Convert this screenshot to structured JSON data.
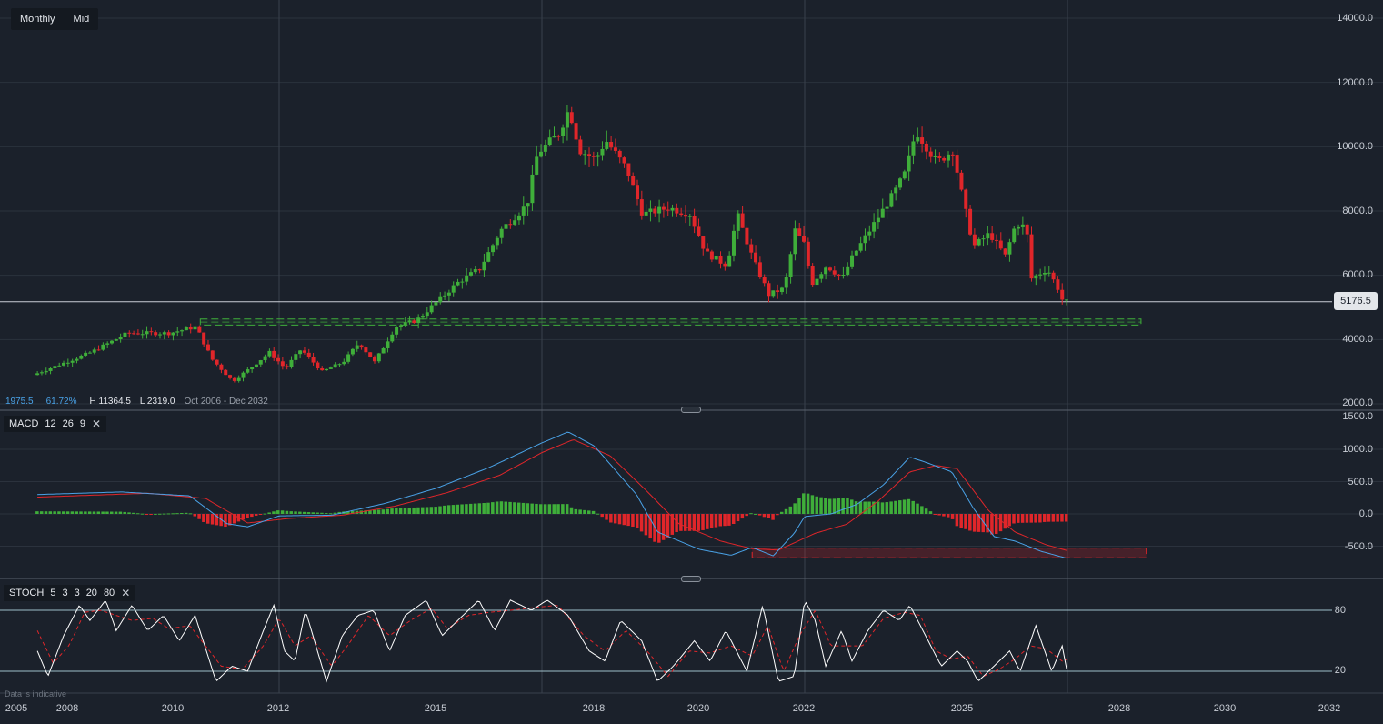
{
  "toolbar": {
    "interval": "Monthly",
    "price_type": "Mid"
  },
  "colors": {
    "background": "#1b212b",
    "up": "#3fae3a",
    "down": "#e0262a",
    "macd_line": "#4aa3e8",
    "signal_line": "#e0262a",
    "stoch_k": "#ffffff",
    "stoch_d": "#e0262a",
    "hist_pos": "#3fae3a",
    "hist_neg": "#e0262a"
  },
  "price_axis": {
    "labels": [
      "14000.0",
      "12000.0",
      "10000.0",
      "8000.0",
      "6000.0",
      "4000.0",
      "2000.0"
    ]
  },
  "last_price": "5176.5",
  "info": {
    "fib_level": "1975.5",
    "fib_pct": "61.72%",
    "high": "H 11364.5",
    "low": "L 2319.0",
    "range": "Oct 2006 - Dec 2032"
  },
  "macd": {
    "label": "MACD",
    "params": [
      "12",
      "26",
      "9"
    ],
    "axis_labels": [
      "1500.0",
      "1000.0",
      "500.0",
      "0.0",
      "-500.0"
    ]
  },
  "stoch": {
    "label": "STOCH",
    "params": [
      "5",
      "3",
      "3",
      "20",
      "80"
    ],
    "axis_labels": [
      "80",
      "20"
    ]
  },
  "x_axis": {
    "labels": [
      "2005",
      "2008",
      "2010",
      "2012",
      "2015",
      "2018",
      "2020",
      "2022",
      "2025",
      "2028",
      "2030",
      "2032"
    ]
  },
  "disclaimer": "Data is indicative",
  "chart_data": [
    {
      "type": "candlestick",
      "ylim": [
        2000,
        14000
      ],
      "x_range": [
        2005.4,
        2032.5
      ],
      "anchors": [
        [
          2005.4,
          2900
        ],
        [
          2006.5,
          3600
        ],
        [
          2007.2,
          4200
        ],
        [
          2008.0,
          4200
        ],
        [
          2008.5,
          4400
        ],
        [
          2008.8,
          3400
        ],
        [
          2009.2,
          2700
        ],
        [
          2009.6,
          3200
        ],
        [
          2009.9,
          3600
        ],
        [
          2010.2,
          3100
        ],
        [
          2010.5,
          3700
        ],
        [
          2010.9,
          3000
        ],
        [
          2011.3,
          3300
        ],
        [
          2011.6,
          3900
        ],
        [
          2011.9,
          3300
        ],
        [
          2012.3,
          4400
        ],
        [
          2012.7,
          4600
        ],
        [
          2013.1,
          5200
        ],
        [
          2013.5,
          5800
        ],
        [
          2013.9,
          6200
        ],
        [
          2014.3,
          7400
        ],
        [
          2014.8,
          8200
        ],
        [
          2015.0,
          9800
        ],
        [
          2015.4,
          10400
        ],
        [
          2015.6,
          11200
        ],
        [
          2015.8,
          9900
        ],
        [
          2016.1,
          9600
        ],
        [
          2016.3,
          10200
        ],
        [
          2016.7,
          9300
        ],
        [
          2017.0,
          7900
        ],
        [
          2017.5,
          8100
        ],
        [
          2017.9,
          7900
        ],
        [
          2018.2,
          6700
        ],
        [
          2018.6,
          6300
        ],
        [
          2018.8,
          7900
        ],
        [
          2019.1,
          6500
        ],
        [
          2019.4,
          5400
        ],
        [
          2019.7,
          5600
        ],
        [
          2019.9,
          7400
        ],
        [
          2020.1,
          6900
        ],
        [
          2020.2,
          5700
        ],
        [
          2020.5,
          6300
        ],
        [
          2020.8,
          5900
        ],
        [
          2021.0,
          6600
        ],
        [
          2021.4,
          7600
        ],
        [
          2021.8,
          8600
        ],
        [
          2022.0,
          9200
        ],
        [
          2022.2,
          10500
        ],
        [
          2022.6,
          9500
        ],
        [
          2022.9,
          9900
        ],
        [
          2023.1,
          8300
        ],
        [
          2023.3,
          6900
        ],
        [
          2023.6,
          7300
        ],
        [
          2023.9,
          6600
        ],
        [
          2024.1,
          7600
        ],
        [
          2024.3,
          7500
        ],
        [
          2024.4,
          5900
        ],
        [
          2024.7,
          6200
        ],
        [
          2024.9,
          5600
        ],
        [
          2025.0,
          5176.5
        ]
      ],
      "last": 5176.5,
      "support_band": [
        4450,
        4640
      ],
      "support_x": [
        2008.5,
        2026.4
      ]
    },
    {
      "type": "macd",
      "ylim": [
        -900,
        1500
      ],
      "macd_anchors": [
        [
          2005.4,
          300
        ],
        [
          2007.0,
          340
        ],
        [
          2008.3,
          280
        ],
        [
          2009.0,
          -150
        ],
        [
          2009.4,
          -200
        ],
        [
          2010.0,
          -30
        ],
        [
          2011.0,
          -20
        ],
        [
          2012.0,
          160
        ],
        [
          2013.0,
          400
        ],
        [
          2014.0,
          720
        ],
        [
          2015.0,
          1100
        ],
        [
          2015.5,
          1270
        ],
        [
          2016.0,
          1050
        ],
        [
          2016.8,
          300
        ],
        [
          2017.2,
          -280
        ],
        [
          2018.0,
          -550
        ],
        [
          2018.6,
          -640
        ],
        [
          2019.0,
          -520
        ],
        [
          2019.4,
          -650
        ],
        [
          2019.8,
          -300
        ],
        [
          2020.0,
          -40
        ],
        [
          2020.5,
          0
        ],
        [
          2021.0,
          150
        ],
        [
          2021.5,
          450
        ],
        [
          2022.0,
          880
        ],
        [
          2022.3,
          800
        ],
        [
          2022.8,
          650
        ],
        [
          2023.2,
          100
        ],
        [
          2023.6,
          -350
        ],
        [
          2024.0,
          -420
        ],
        [
          2024.5,
          -580
        ],
        [
          2025.0,
          -690
        ]
      ],
      "signal_anchors": [
        [
          2005.4,
          260
        ],
        [
          2007.5,
          320
        ],
        [
          2008.6,
          240
        ],
        [
          2009.4,
          -140
        ],
        [
          2010.2,
          -70
        ],
        [
          2011.2,
          -20
        ],
        [
          2012.2,
          120
        ],
        [
          2013.2,
          330
        ],
        [
          2014.2,
          600
        ],
        [
          2015.0,
          950
        ],
        [
          2015.6,
          1150
        ],
        [
          2016.3,
          900
        ],
        [
          2017.0,
          350
        ],
        [
          2017.6,
          -150
        ],
        [
          2018.4,
          -420
        ],
        [
          2019.0,
          -540
        ],
        [
          2019.5,
          -560
        ],
        [
          2020.2,
          -300
        ],
        [
          2020.8,
          -160
        ],
        [
          2021.4,
          200
        ],
        [
          2022.0,
          650
        ],
        [
          2022.5,
          750
        ],
        [
          2022.9,
          700
        ],
        [
          2023.5,
          50
        ],
        [
          2024.0,
          -280
        ],
        [
          2024.6,
          -480
        ],
        [
          2025.0,
          -570
        ]
      ],
      "support_band": [
        -680,
        -530
      ],
      "support_x": [
        2019.0,
        2026.5
      ]
    },
    {
      "type": "stochastic",
      "ylim": [
        0,
        100
      ],
      "levels": [
        80,
        20
      ],
      "k_anchors": [
        [
          2005.4,
          40
        ],
        [
          2005.6,
          15
        ],
        [
          2005.9,
          55
        ],
        [
          2006.2,
          85
        ],
        [
          2006.4,
          70
        ],
        [
          2006.7,
          90
        ],
        [
          2006.9,
          60
        ],
        [
          2007.2,
          85
        ],
        [
          2007.5,
          60
        ],
        [
          2007.8,
          75
        ],
        [
          2008.1,
          50
        ],
        [
          2008.4,
          75
        ],
        [
          2008.8,
          10
        ],
        [
          2009.1,
          25
        ],
        [
          2009.4,
          20
        ],
        [
          2009.7,
          60
        ],
        [
          2009.9,
          85
        ],
        [
          2010.1,
          40
        ],
        [
          2010.3,
          30
        ],
        [
          2010.5,
          80
        ],
        [
          2010.9,
          10
        ],
        [
          2011.2,
          55
        ],
        [
          2011.5,
          75
        ],
        [
          2011.8,
          80
        ],
        [
          2012.1,
          40
        ],
        [
          2012.4,
          75
        ],
        [
          2012.8,
          90
        ],
        [
          2013.1,
          55
        ],
        [
          2013.4,
          70
        ],
        [
          2013.8,
          90
        ],
        [
          2014.1,
          60
        ],
        [
          2014.4,
          90
        ],
        [
          2014.8,
          80
        ],
        [
          2015.1,
          90
        ],
        [
          2015.5,
          75
        ],
        [
          2015.9,
          40
        ],
        [
          2016.2,
          30
        ],
        [
          2016.5,
          70
        ],
        [
          2016.9,
          50
        ],
        [
          2017.2,
          10
        ],
        [
          2017.5,
          25
        ],
        [
          2017.9,
          50
        ],
        [
          2018.2,
          30
        ],
        [
          2018.5,
          60
        ],
        [
          2018.9,
          20
        ],
        [
          2019.2,
          85
        ],
        [
          2019.5,
          10
        ],
        [
          2019.8,
          15
        ],
        [
          2020.0,
          90
        ],
        [
          2020.2,
          70
        ],
        [
          2020.4,
          25
        ],
        [
          2020.7,
          60
        ],
        [
          2020.9,
          30
        ],
        [
          2021.2,
          60
        ],
        [
          2021.5,
          80
        ],
        [
          2021.8,
          70
        ],
        [
          2022.0,
          85
        ],
        [
          2022.3,
          55
        ],
        [
          2022.6,
          25
        ],
        [
          2022.9,
          40
        ],
        [
          2023.1,
          30
        ],
        [
          2023.3,
          10
        ],
        [
          2023.6,
          25
        ],
        [
          2023.9,
          40
        ],
        [
          2024.1,
          20
        ],
        [
          2024.4,
          65
        ],
        [
          2024.7,
          20
        ],
        [
          2024.9,
          45
        ],
        [
          2025.0,
          18
        ]
      ],
      "d_anchors": [
        [
          2005.4,
          60
        ],
        [
          2005.7,
          28
        ],
        [
          2006.0,
          45
        ],
        [
          2006.3,
          78
        ],
        [
          2006.6,
          80
        ],
        [
          2006.9,
          75
        ],
        [
          2007.2,
          70
        ],
        [
          2007.6,
          72
        ],
        [
          2007.9,
          62
        ],
        [
          2008.3,
          65
        ],
        [
          2008.9,
          25
        ],
        [
          2009.3,
          22
        ],
        [
          2009.7,
          45
        ],
        [
          2010.0,
          72
        ],
        [
          2010.3,
          45
        ],
        [
          2010.6,
          55
        ],
        [
          2011.0,
          25
        ],
        [
          2011.3,
          45
        ],
        [
          2011.7,
          75
        ],
        [
          2012.1,
          55
        ],
        [
          2012.5,
          70
        ],
        [
          2012.9,
          82
        ],
        [
          2013.2,
          62
        ],
        [
          2013.6,
          75
        ],
        [
          2014.0,
          78
        ],
        [
          2014.4,
          80
        ],
        [
          2014.9,
          83
        ],
        [
          2015.3,
          85
        ],
        [
          2015.8,
          55
        ],
        [
          2016.2,
          40
        ],
        [
          2016.6,
          60
        ],
        [
          2017.0,
          40
        ],
        [
          2017.4,
          15
        ],
        [
          2017.8,
          40
        ],
        [
          2018.2,
          38
        ],
        [
          2018.6,
          45
        ],
        [
          2019.0,
          35
        ],
        [
          2019.3,
          65
        ],
        [
          2019.6,
          20
        ],
        [
          2019.9,
          55
        ],
        [
          2020.2,
          80
        ],
        [
          2020.5,
          45
        ],
        [
          2020.8,
          45
        ],
        [
          2021.1,
          45
        ],
        [
          2021.5,
          72
        ],
        [
          2021.9,
          78
        ],
        [
          2022.2,
          75
        ],
        [
          2022.5,
          40
        ],
        [
          2022.8,
          32
        ],
        [
          2023.1,
          35
        ],
        [
          2023.4,
          15
        ],
        [
          2023.7,
          22
        ],
        [
          2024.0,
          32
        ],
        [
          2024.3,
          45
        ],
        [
          2024.6,
          42
        ],
        [
          2024.9,
          30
        ],
        [
          2025.0,
          32
        ]
      ]
    }
  ]
}
